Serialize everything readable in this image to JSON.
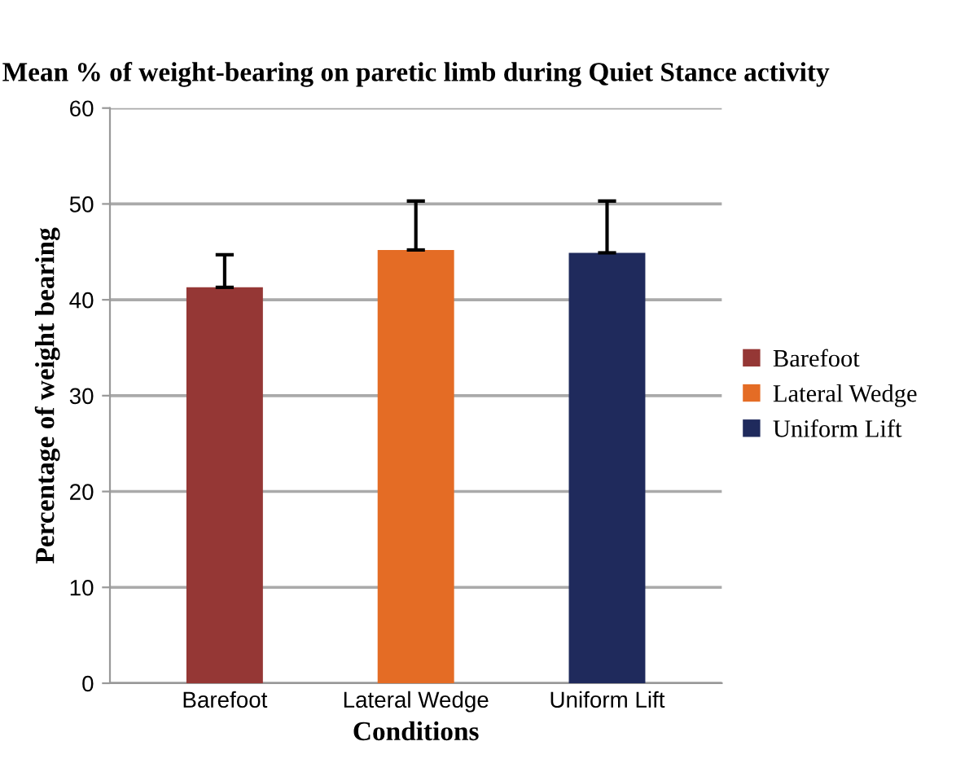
{
  "chart_data": {
    "type": "bar",
    "title": "Mean % of weight-bearing on paretic limb during Quiet Stance activity",
    "xlabel": "Conditions",
    "ylabel": "Percentage of weight bearing",
    "categories": [
      "Barefoot",
      "Lateral Wedge",
      "Uniform Lift"
    ],
    "series": [
      {
        "name": "Barefoot",
        "color": "#953735",
        "values": [
          41.3,
          null,
          null
        ],
        "errors": [
          [
            41.3,
            44.7
          ],
          null,
          null
        ]
      },
      {
        "name": "Lateral Wedge",
        "color": "#e46c25",
        "values": [
          null,
          45.2,
          null
        ],
        "errors": [
          null,
          [
            45.2,
            50.3
          ],
          null
        ]
      },
      {
        "name": "Uniform Lift",
        "color": "#1f2a5c",
        "values": [
          null,
          null,
          44.9
        ],
        "errors": [
          null,
          null,
          [
            44.9,
            50.3
          ]
        ]
      }
    ],
    "ylim": [
      0,
      60
    ],
    "yticks": [
      0,
      10,
      20,
      30,
      40,
      50,
      60
    ],
    "grid": "y",
    "legend": "right"
  }
}
